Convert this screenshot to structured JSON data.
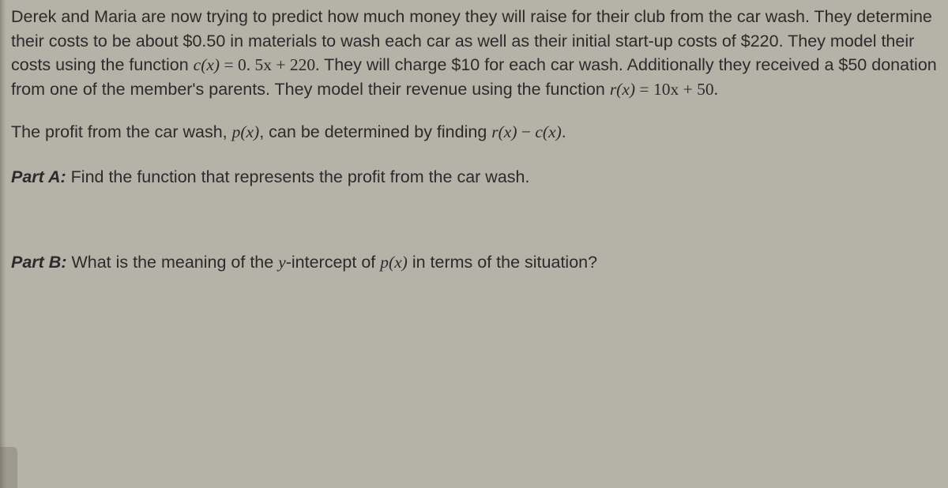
{
  "colors": {
    "background": "#b5b2a8",
    "text": "#2b2b2b",
    "edge": "#8d887c"
  },
  "typography": {
    "body_fontsize_pt": 16,
    "font_family": "Arial",
    "math_family": "Times New Roman",
    "line_height": 1.42
  },
  "intro": {
    "t1": "Derek and Maria are now trying to predict how much money they will raise for their club from the car wash. They determine their costs to be about $0.50 in materials to wash each car as well as their initial start-up costs of $220. They model their costs using the function ",
    "cost_fn_lhs": "c(x)",
    "eq1": " = ",
    "cost_fn_rhs": "0. 5x + 220.",
    "t2": "  They will charge $10 for each car wash. Additionally they received a $50 donation from one of the member's parents. They model their revenue using the function ",
    "rev_fn_lhs": "r(x)",
    "eq2": " = ",
    "rev_fn_rhs": "10x + 50.",
    "period": ""
  },
  "profit_line": {
    "t1": "The profit from the car wash, ",
    "p_fn": "p(x)",
    "t2": ", can be determined by finding ",
    "r_fn": "r(x)",
    "minus": " − ",
    "c_fn": "c(x)",
    "t3": "."
  },
  "partA": {
    "label": "Part A:",
    "text": "  Find the function that represents the profit from the car wash."
  },
  "partB": {
    "label": "Part B:",
    "t1": "  What is the meaning of the ",
    "yint": "y",
    "t2": "-intercept of ",
    "p_fn": "p(x)",
    "t3": " in terms of the situation?"
  }
}
